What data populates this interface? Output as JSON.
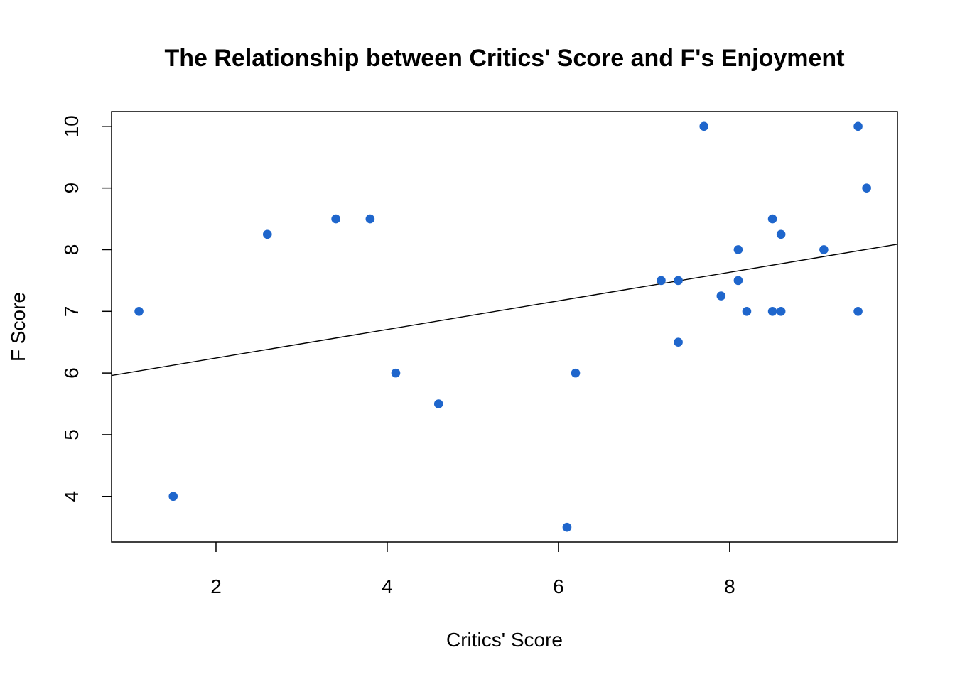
{
  "colors": {
    "point": "#1F66CC",
    "axis": "#000000",
    "fit_line": "#000000",
    "background": "#FFFFFF"
  },
  "chart_data": {
    "type": "scatter",
    "title": "The Relationship between Critics' Score and F's Enjoyment",
    "xlabel": "Critics' Score",
    "ylabel": "F Score",
    "xlim": [
      0.78,
      9.96
    ],
    "ylim": [
      3.26,
      10.24
    ],
    "xticks": [
      "2",
      "4",
      "6",
      "8"
    ],
    "yticks": [
      "4",
      "5",
      "6",
      "7",
      "8",
      "9",
      "10"
    ],
    "grid": false,
    "legend": "none",
    "points": [
      {
        "x": 1.1,
        "y": 7.0
      },
      {
        "x": 1.5,
        "y": 4.0
      },
      {
        "x": 2.6,
        "y": 8.25
      },
      {
        "x": 3.4,
        "y": 8.5
      },
      {
        "x": 3.8,
        "y": 8.5
      },
      {
        "x": 4.1,
        "y": 6.0
      },
      {
        "x": 4.6,
        "y": 5.5
      },
      {
        "x": 6.1,
        "y": 3.5
      },
      {
        "x": 6.2,
        "y": 6.0
      },
      {
        "x": 7.2,
        "y": 7.5
      },
      {
        "x": 7.4,
        "y": 7.5
      },
      {
        "x": 7.4,
        "y": 6.5
      },
      {
        "x": 7.7,
        "y": 10.0
      },
      {
        "x": 7.9,
        "y": 7.25
      },
      {
        "x": 8.1,
        "y": 8.0
      },
      {
        "x": 8.1,
        "y": 7.5
      },
      {
        "x": 8.2,
        "y": 7.0
      },
      {
        "x": 8.5,
        "y": 8.5
      },
      {
        "x": 8.5,
        "y": 7.0
      },
      {
        "x": 8.6,
        "y": 8.25
      },
      {
        "x": 8.6,
        "y": 7.0
      },
      {
        "x": 9.1,
        "y": 8.0
      },
      {
        "x": 9.5,
        "y": 10.0
      },
      {
        "x": 9.5,
        "y": 7.0
      },
      {
        "x": 9.6,
        "y": 9.0
      }
    ],
    "regression_line": {
      "intercept": 5.78,
      "slope": 0.2317
    }
  }
}
